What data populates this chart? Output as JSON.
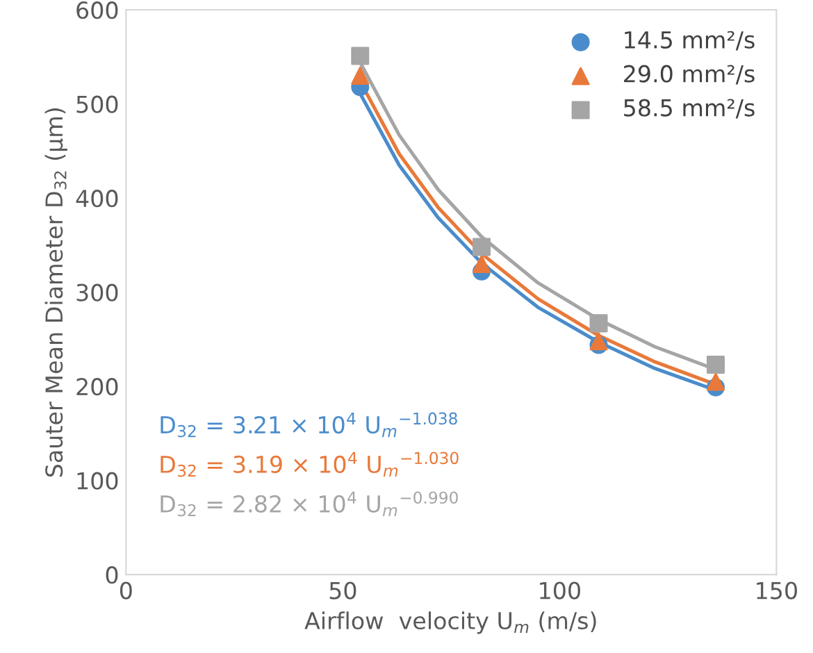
{
  "chart_data": {
    "type": "scatter",
    "xlabel": "Airflow  velocity U$_{m}$ (m/s)",
    "ylabel": "Sauter Mean Diameter D$_{32}$ (μm)",
    "x": [
      54,
      82,
      109,
      136
    ],
    "series": [
      {
        "name": "14.5 mm²/s",
        "color": "#4a8ccb",
        "marker": "circle",
        "values": [
          518,
          322,
          244,
          199
        ]
      },
      {
        "name": "29.0 mm²/s",
        "color": "#e8793a",
        "marker": "triangle",
        "values": [
          530,
          330,
          248,
          205
        ]
      },
      {
        "name": "58.5 mm²/s",
        "color": "#a5a5a5",
        "marker": "square",
        "values": [
          551,
          348,
          267,
          223
        ]
      },
      {
        "type": "line",
        "color": "#4a8ccb",
        "x": [
          54,
          63,
          72,
          82,
          95,
          109,
          122,
          136
        ],
        "values": [
          511,
          435,
          379,
          331,
          284,
          247,
          219,
          196
        ]
      },
      {
        "type": "line",
        "color": "#e8793a",
        "x": [
          54,
          63,
          72,
          82,
          95,
          109,
          122,
          136
        ],
        "values": [
          524,
          447,
          390,
          341,
          293,
          254,
          226,
          202
        ]
      },
      {
        "type": "line",
        "color": "#a5a5a5",
        "x": [
          54,
          63,
          72,
          82,
          95,
          109,
          122,
          136
        ],
        "values": [
          544,
          467,
          409,
          359,
          310,
          271,
          242,
          218
        ]
      }
    ],
    "annotations": [
      "D$_{32}$ = 3.21 × 10$^{4}$ U$_{m}$$^{−1.038}$",
      "D$_{32}$ = 3.19 × 10$^{4}$ U$_{m}$$^{−1.030}$",
      "D$_{32}$ = 2.82 × 10$^{4}$ U$_{m}$$^{−0.990}$"
    ],
    "xlim": [
      0,
      150
    ],
    "xticks": [
      0,
      50,
      100,
      150
    ],
    "ylim": [
      0,
      600
    ],
    "yticks": [
      0,
      100,
      200,
      300,
      400,
      500,
      600
    ],
    "grid": false,
    "legend": "top right"
  }
}
